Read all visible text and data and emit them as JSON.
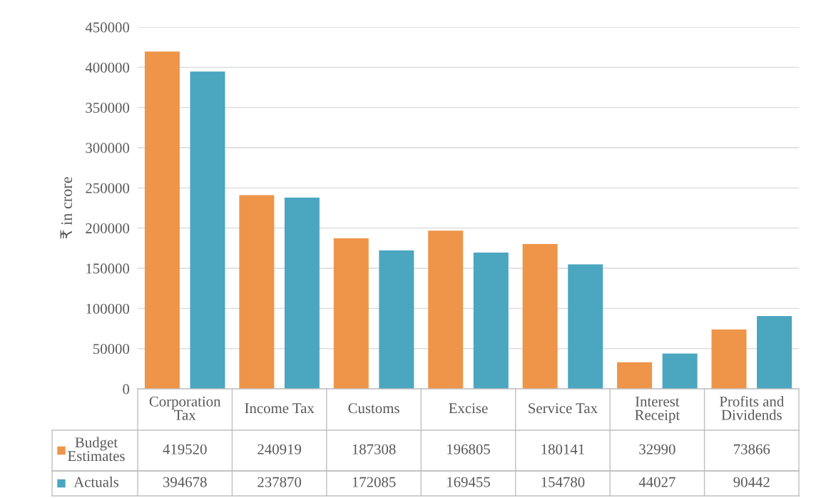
{
  "chart_data": {
    "type": "bar",
    "ylabel": "₹ in crore",
    "categories": [
      "Corporation\nTax",
      "Income Tax",
      "Customs",
      "Excise",
      "Service Tax",
      "Interest\nReceipt",
      "Profits and\nDividends"
    ],
    "series": [
      {
        "name": "Budget\nEstimates",
        "color": "#ee9549",
        "values": [
          419520,
          240919,
          187308,
          196805,
          180141,
          32990,
          73866
        ]
      },
      {
        "name": "Actuals",
        "color": "#4ba6c0",
        "values": [
          394678,
          237870,
          172085,
          169455,
          154780,
          44027,
          90442
        ]
      }
    ],
    "ylim": [
      0,
      450000
    ],
    "yticks": [
      0,
      50000,
      100000,
      150000,
      200000,
      250000,
      300000,
      350000,
      400000,
      450000
    ],
    "grid": "y",
    "legend": "bottom",
    "data_labels": true
  }
}
